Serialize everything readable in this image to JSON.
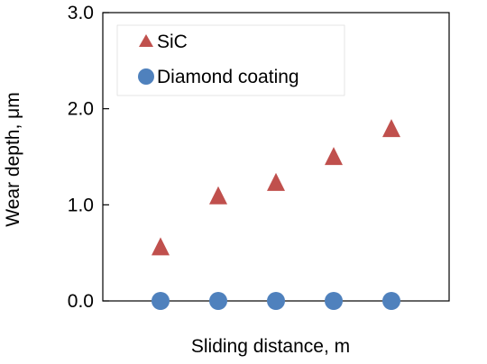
{
  "chart_data": {
    "type": "scatter",
    "xlabel": "Sliding  distance, m",
    "ylabel": "Wear  depth, μm",
    "ylim": [
      0.0,
      3.0
    ],
    "yticks": [
      "0.0",
      "1.0",
      "2.0",
      "3.0"
    ],
    "x": [
      1,
      2,
      3,
      4,
      5
    ],
    "xlim": [
      0,
      6
    ],
    "grid": false,
    "legend_position": "top-left",
    "series": [
      {
        "name": "SiC",
        "marker": "triangle",
        "color": "#C0504D",
        "values": [
          0.55,
          1.08,
          1.22,
          1.49,
          1.78
        ]
      },
      {
        "name": "Diamond coating",
        "marker": "circle",
        "color": "#4F81BD",
        "values": [
          0.0,
          0.0,
          0.0,
          0.0,
          0.0
        ]
      }
    ]
  }
}
